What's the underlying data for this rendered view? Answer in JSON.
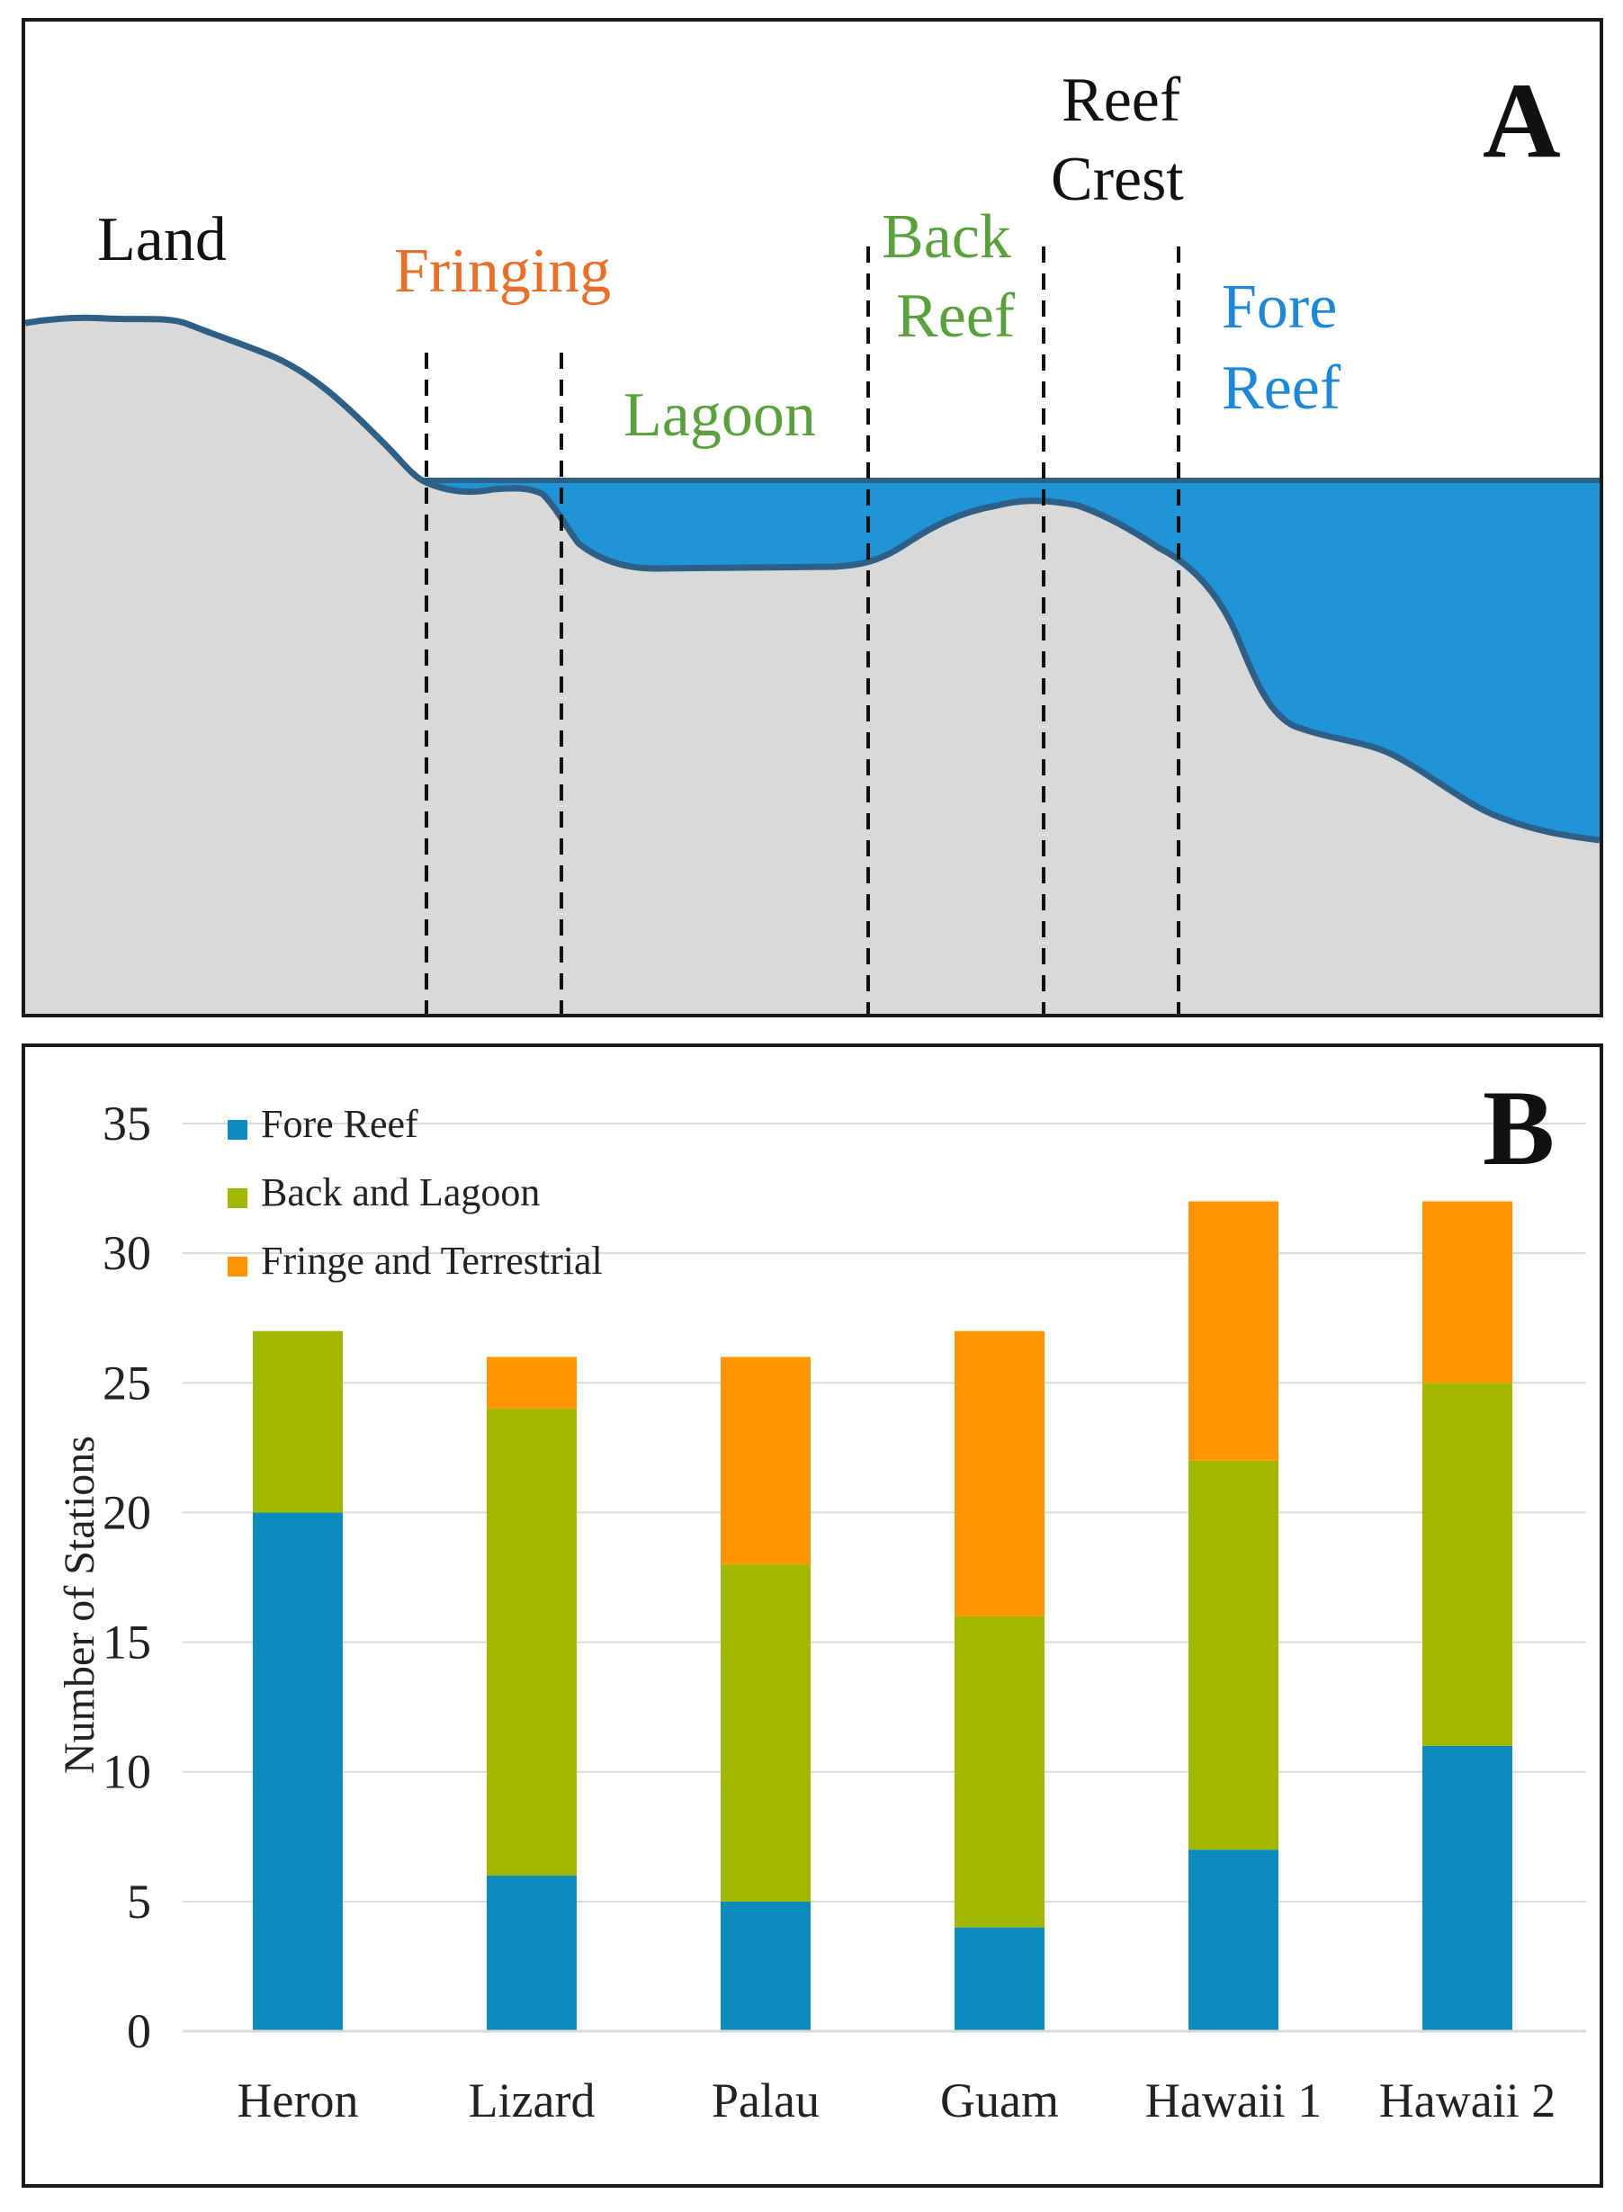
{
  "panel_a": {
    "letter": "A",
    "labels": {
      "land": "Land",
      "fringing": "Fringing",
      "lagoon": "Lagoon",
      "back_reef_1": "Back",
      "back_reef_2": "Reef",
      "reef_crest_1": "Reef",
      "reef_crest_2": "Crest",
      "fore_reef_1": "Fore",
      "fore_reef_2": "Reef"
    },
    "colors": {
      "land_text": "#111111",
      "fringing": "#e8702a",
      "lagoon": "#5aa03c",
      "back_reef": "#5aa03c",
      "reef_crest": "#111111",
      "fore_reef": "#1e88d6",
      "water": "#1f95d8",
      "seabed": "#d9d9d9",
      "outline": "#2e5f86"
    }
  },
  "chart_data": {
    "type": "bar",
    "stacked": true,
    "panel_letter": "B",
    "categories": [
      "Heron",
      "Lizard",
      "Palau",
      "Guam",
      "Hawaii 1",
      "Hawaii 2"
    ],
    "series": [
      {
        "name": "Fore Reef",
        "color": "#0a8bbb",
        "values": [
          20,
          6,
          5,
          4,
          7,
          11
        ]
      },
      {
        "name": "Back and Lagoon",
        "color": "#a2b800",
        "values": [
          7,
          18,
          13,
          12,
          15,
          14
        ]
      },
      {
        "name": "Fringe and Terrestrial",
        "color": "#ff9500",
        "values": [
          0,
          2,
          8,
          11,
          10,
          7
        ]
      }
    ],
    "ylabel": "Number of Stations",
    "xlabel": "",
    "ylim": [
      0,
      35
    ],
    "yticks": [
      "0",
      "5",
      "10",
      "15",
      "20",
      "25",
      "30",
      "35"
    ],
    "grid": true,
    "legend_position": "top-left"
  }
}
